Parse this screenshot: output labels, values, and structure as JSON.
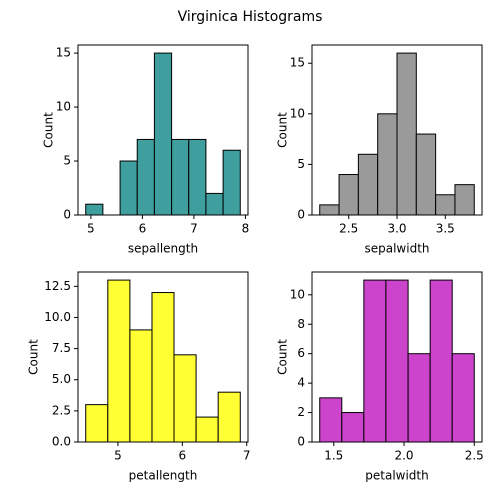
{
  "title": "Virginica Histograms",
  "chart_data": [
    {
      "type": "histogram",
      "xlabel": "sepallength",
      "ylabel": "Count",
      "color": "#3f9f9f",
      "bins": [
        4.9,
        5.233,
        5.567,
        5.9,
        6.233,
        6.567,
        6.9,
        7.233,
        7.567,
        7.9
      ],
      "values": [
        1,
        0,
        5,
        7,
        15,
        7,
        7,
        2,
        6
      ],
      "xlim": [
        4.75,
        8.05
      ],
      "xticks": [
        5,
        6,
        7,
        8
      ],
      "ylim": [
        0,
        15.75
      ],
      "yticks": [
        0,
        5,
        10,
        15
      ]
    },
    {
      "type": "histogram",
      "xlabel": "sepalwidth",
      "ylabel": "Count",
      "color": "#9a9a9a",
      "bins": [
        2.2,
        2.4,
        2.6,
        2.8,
        3.0,
        3.2,
        3.4,
        3.6,
        3.8
      ],
      "values": [
        1,
        4,
        6,
        10,
        16,
        8,
        2,
        3
      ],
      "xlim": [
        2.12,
        3.88
      ],
      "xticks": [
        2.5,
        {
          "value": 3,
          "label": "3.0"
        },
        3.5
      ],
      "ylim": [
        0,
        16.8
      ],
      "yticks": [
        0,
        5,
        10,
        15
      ]
    },
    {
      "type": "histogram",
      "xlabel": "petallength",
      "ylabel": "Count",
      "color": "#ffff33",
      "bins": [
        4.5,
        4.843,
        5.186,
        5.529,
        5.871,
        6.214,
        6.557,
        6.9
      ],
      "values": [
        3,
        13,
        9,
        12,
        7,
        2,
        4
      ],
      "xlim": [
        4.38,
        7.02
      ],
      "xticks": [
        5,
        6,
        7
      ],
      "ylim": [
        0,
        13.65
      ],
      "yticks": [
        {
          "value": 0,
          "label": "0.0"
        },
        2.5,
        {
          "value": 5,
          "label": "5.0"
        },
        7.5,
        {
          "value": 10,
          "label": "10.0"
        },
        12.5
      ]
    },
    {
      "type": "histogram",
      "xlabel": "petalwidth",
      "ylabel": "Count",
      "color": "#cc44cc",
      "bins": [
        1.4,
        1.557,
        1.714,
        1.871,
        2.029,
        2.186,
        2.343,
        2.5
      ],
      "values": [
        3,
        2,
        11,
        11,
        6,
        11,
        6
      ],
      "xlim": [
        1.345,
        2.555
      ],
      "xticks": [
        1.5,
        {
          "value": 2,
          "label": "2.0"
        },
        2.5
      ],
      "ylim": [
        0,
        11.55
      ],
      "yticks": [
        0,
        2,
        4,
        6,
        8,
        10
      ]
    }
  ]
}
